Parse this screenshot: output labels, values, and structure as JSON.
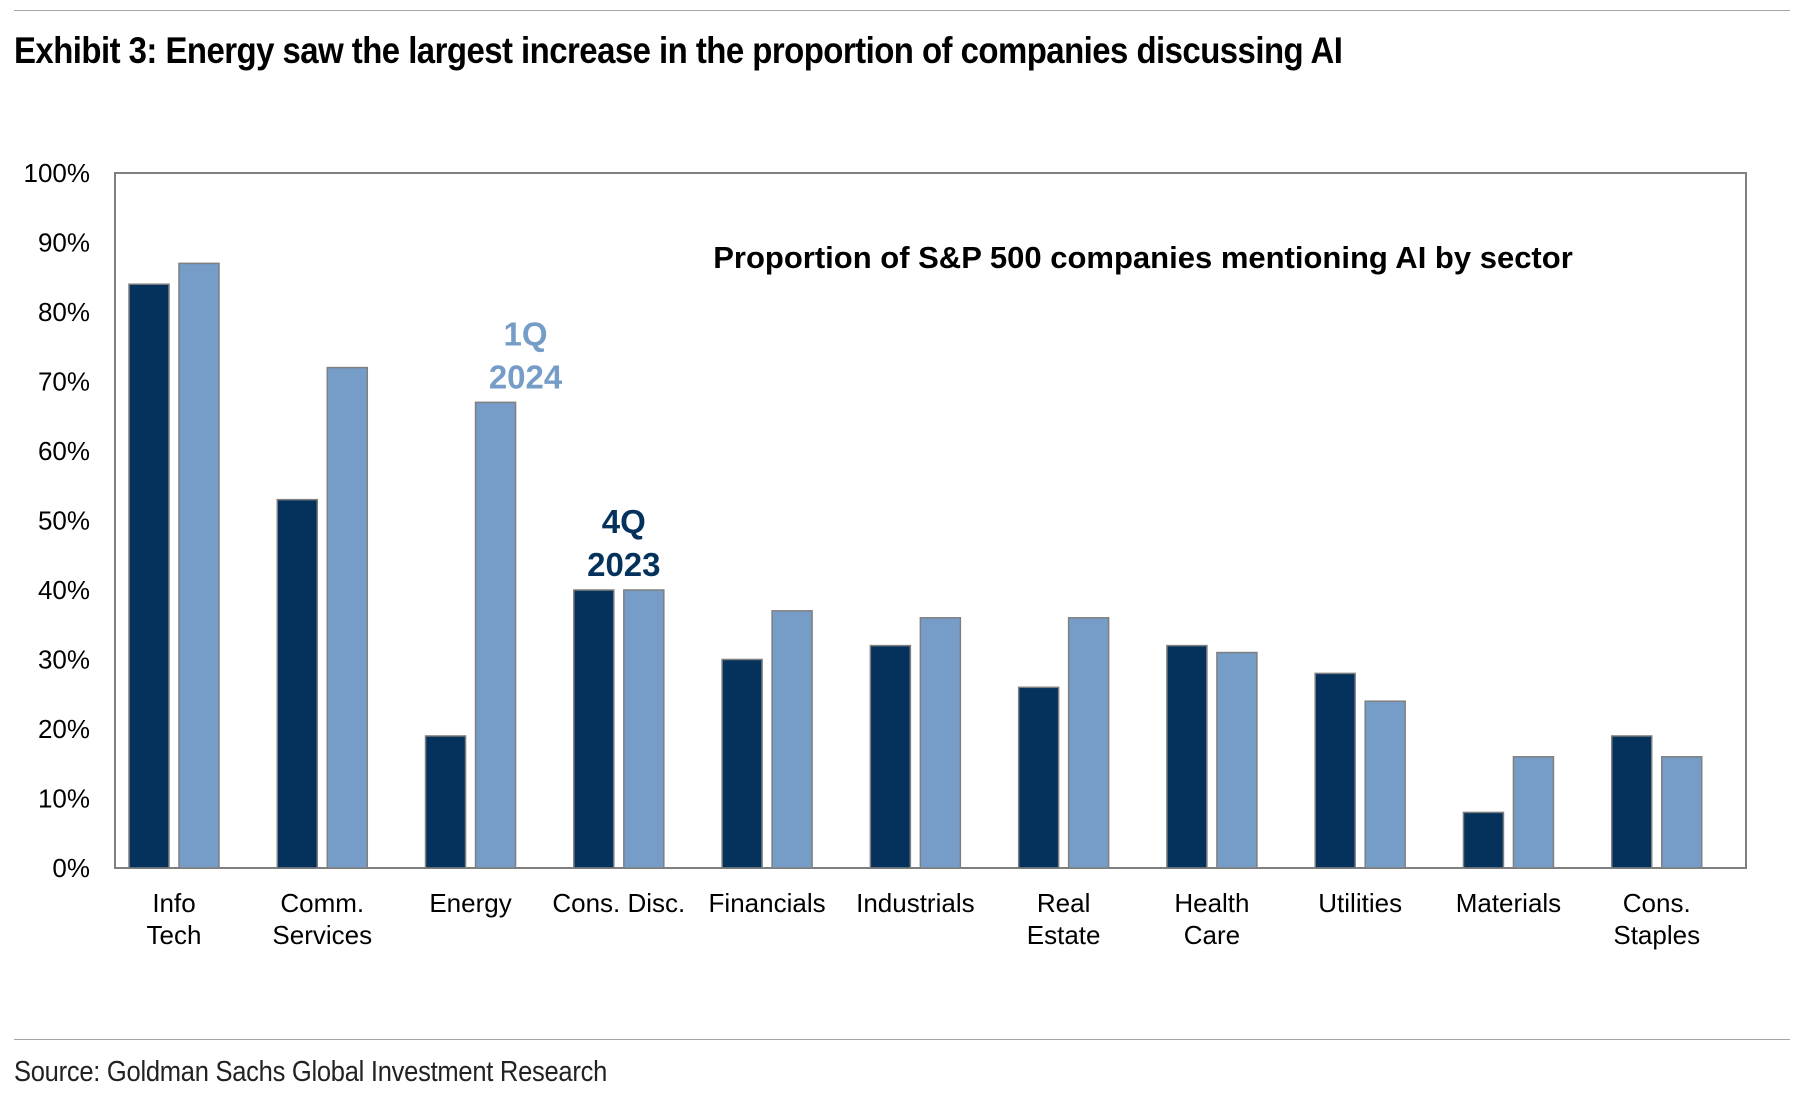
{
  "header": {
    "title": "Exhibit 3: Energy saw the largest increase in the proportion of companies discussing AI"
  },
  "footer": {
    "source": "Source: Goldman Sachs Global Investment Research"
  },
  "colors": {
    "series_4q2023": "#04325c",
    "series_1q2024": "#769cc8",
    "bar_outline": "#7f7f7f",
    "plot_border": "#7f7f7f"
  },
  "chart_data": {
    "type": "bar",
    "title": "Proportion of S&P 500 companies mentioning AI by sector",
    "categories": [
      [
        "Info",
        "Tech"
      ],
      [
        "Comm.",
        "Services"
      ],
      [
        "Energy"
      ],
      [
        "Cons. Disc."
      ],
      [
        "Financials"
      ],
      [
        "Industrials"
      ],
      [
        "Real",
        "Estate"
      ],
      [
        "Health",
        "Care"
      ],
      [
        "Utilities"
      ],
      [
        "Materials"
      ],
      [
        "Cons.",
        "Staples"
      ]
    ],
    "series": [
      {
        "name": "4Q 2023",
        "label_lines": [
          "4Q",
          "2023"
        ],
        "label_category_index": 3,
        "color": "#04325c",
        "values": [
          84,
          53,
          19,
          40,
          30,
          32,
          26,
          32,
          28,
          8,
          19
        ]
      },
      {
        "name": "1Q 2024",
        "label_lines": [
          "1Q",
          "2024"
        ],
        "label_category_index": 2,
        "color": "#769cc8",
        "values": [
          87,
          72,
          67,
          40,
          37,
          36,
          36,
          31,
          24,
          16,
          16
        ]
      }
    ],
    "ylim": [
      0,
      100
    ],
    "yticks": [
      0,
      10,
      20,
      30,
      40,
      50,
      60,
      70,
      80,
      90,
      100
    ],
    "ytick_format": "%",
    "grid": false,
    "legend": "direct labels"
  }
}
